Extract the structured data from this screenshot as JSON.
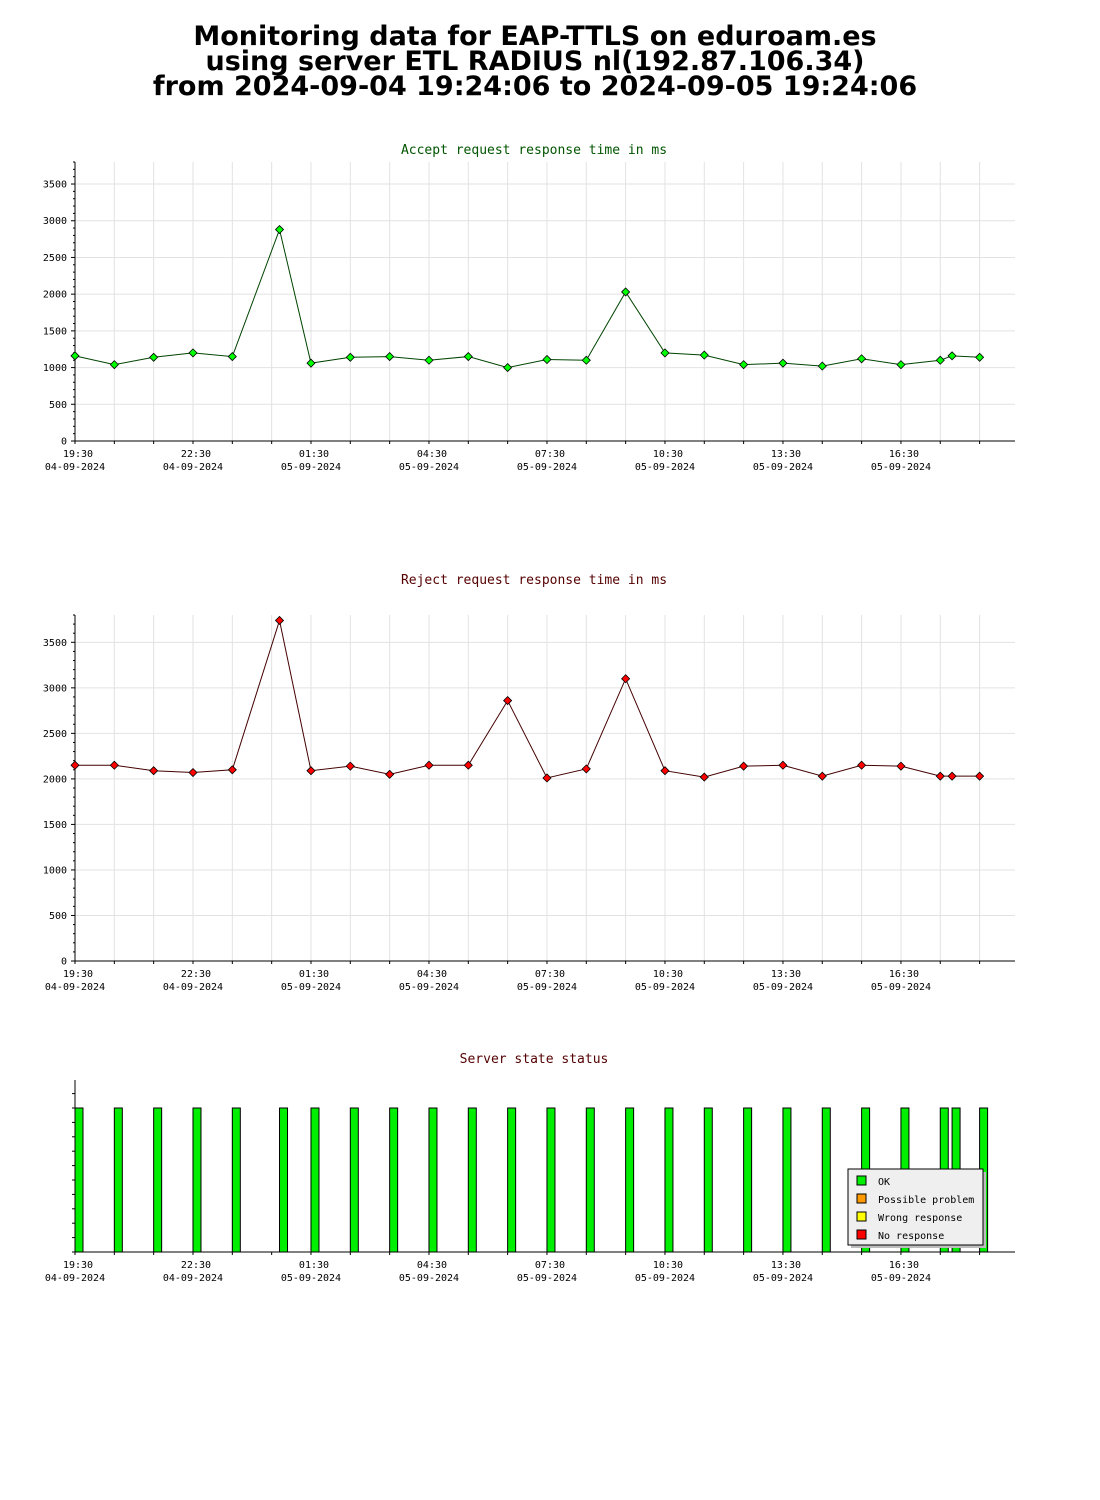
{
  "title": {
    "line1": "Monitoring data for EAP-TTLS on eduroam.es",
    "line2": "using server ETL RADIUS nl(192.87.106.34)",
    "line3": "from 2024-09-04 19:24:06 to 2024-09-05 19:24:06"
  },
  "colors": {
    "accept": "#00ff00",
    "accept_title": "#005500",
    "reject": "#ff0000",
    "reject_title": "#550000",
    "status_title": "#550000",
    "ok": "#00ee00",
    "possible_problem": "#ff9900",
    "wrong_response": "#ffff00",
    "no_response": "#ff0000"
  },
  "x_ticks": [
    {
      "time": "19:30",
      "date": "04-09-2024"
    },
    {
      "time": "22:30",
      "date": "04-09-2024"
    },
    {
      "time": "01:30",
      "date": "05-09-2024"
    },
    {
      "time": "04:30",
      "date": "05-09-2024"
    },
    {
      "time": "07:30",
      "date": "05-09-2024"
    },
    {
      "time": "10:30",
      "date": "05-09-2024"
    },
    {
      "time": "13:30",
      "date": "05-09-2024"
    },
    {
      "time": "16:30",
      "date": "05-09-2024"
    }
  ],
  "chart_data": [
    {
      "type": "line",
      "title": "Accept request response time in ms",
      "x_range": [
        "2024-09-04 19:30",
        "2024-09-05 19:24"
      ],
      "ylim": [
        0,
        3800
      ],
      "y_ticks": [
        0,
        500,
        1000,
        1500,
        2000,
        2500,
        3000,
        3500
      ],
      "grid": true,
      "x": [
        "2024-09-04 19:30",
        "2024-09-04 20:30",
        "2024-09-04 21:30",
        "2024-09-04 22:30",
        "2024-09-04 23:30",
        "2024-09-05 00:42",
        "2024-09-05 01:30",
        "2024-09-05 02:30",
        "2024-09-05 03:30",
        "2024-09-05 04:30",
        "2024-09-05 05:30",
        "2024-09-05 06:30",
        "2024-09-05 07:30",
        "2024-09-05 08:30",
        "2024-09-05 09:30",
        "2024-09-05 10:30",
        "2024-09-05 11:30",
        "2024-09-05 12:30",
        "2024-09-05 13:30",
        "2024-09-05 14:30",
        "2024-09-05 15:30",
        "2024-09-05 16:30",
        "2024-09-05 17:30",
        "2024-09-05 17:48",
        "2024-09-05 18:30"
      ],
      "values": [
        1160,
        1040,
        1140,
        1200,
        1150,
        2880,
        1060,
        1140,
        1150,
        1100,
        1150,
        1000,
        1110,
        1100,
        2030,
        1200,
        1170,
        1040,
        1060,
        1020,
        1120,
        1040,
        1100,
        1160,
        1140
      ]
    },
    {
      "type": "line",
      "title": "Reject request response time in ms",
      "x_range": [
        "2024-09-04 19:30",
        "2024-09-05 19:24"
      ],
      "ylim": [
        0,
        3800
      ],
      "y_ticks": [
        0,
        500,
        1000,
        1500,
        2000,
        2500,
        3000,
        3500
      ],
      "grid": true,
      "x": [
        "2024-09-04 19:30",
        "2024-09-04 20:30",
        "2024-09-04 21:30",
        "2024-09-04 22:30",
        "2024-09-04 23:30",
        "2024-09-05 00:42",
        "2024-09-05 01:30",
        "2024-09-05 02:30",
        "2024-09-05 03:30",
        "2024-09-05 04:30",
        "2024-09-05 05:30",
        "2024-09-05 06:30",
        "2024-09-05 07:30",
        "2024-09-05 08:30",
        "2024-09-05 09:30",
        "2024-09-05 10:30",
        "2024-09-05 11:30",
        "2024-09-05 12:30",
        "2024-09-05 13:30",
        "2024-09-05 14:30",
        "2024-09-05 15:30",
        "2024-09-05 16:30",
        "2024-09-05 17:30",
        "2024-09-05 17:48",
        "2024-09-05 18:30"
      ],
      "values": [
        2150,
        2150,
        2090,
        2070,
        2100,
        3740,
        2090,
        2140,
        2050,
        2150,
        2150,
        2860,
        2010,
        2110,
        3100,
        2090,
        2020,
        2140,
        2150,
        2030,
        2150,
        2140,
        2030,
        2030,
        2030
      ]
    },
    {
      "type": "bar",
      "title": "Server state status",
      "x_range": [
        "2024-09-04 19:30",
        "2024-09-05 19:24"
      ],
      "x": [
        "2024-09-04 19:30",
        "2024-09-04 20:30",
        "2024-09-04 21:30",
        "2024-09-04 22:30",
        "2024-09-04 23:30",
        "2024-09-05 00:42",
        "2024-09-05 01:30",
        "2024-09-05 02:30",
        "2024-09-05 03:30",
        "2024-09-05 04:30",
        "2024-09-05 05:30",
        "2024-09-05 06:30",
        "2024-09-05 07:30",
        "2024-09-05 08:30",
        "2024-09-05 09:30",
        "2024-09-05 10:30",
        "2024-09-05 11:30",
        "2024-09-05 12:30",
        "2024-09-05 13:30",
        "2024-09-05 14:30",
        "2024-09-05 15:30",
        "2024-09-05 16:30",
        "2024-09-05 17:30",
        "2024-09-05 17:48",
        "2024-09-05 18:30"
      ],
      "status": [
        "OK",
        "OK",
        "OK",
        "OK",
        "OK",
        "OK",
        "OK",
        "OK",
        "OK",
        "OK",
        "OK",
        "OK",
        "OK",
        "OK",
        "OK",
        "OK",
        "OK",
        "OK",
        "OK",
        "OK",
        "OK",
        "OK",
        "OK",
        "OK",
        "OK"
      ],
      "grid": false,
      "legend": {
        "placement": "bottom-right",
        "items": [
          "OK",
          "Possible problem",
          "Wrong response",
          "No response"
        ]
      }
    }
  ]
}
